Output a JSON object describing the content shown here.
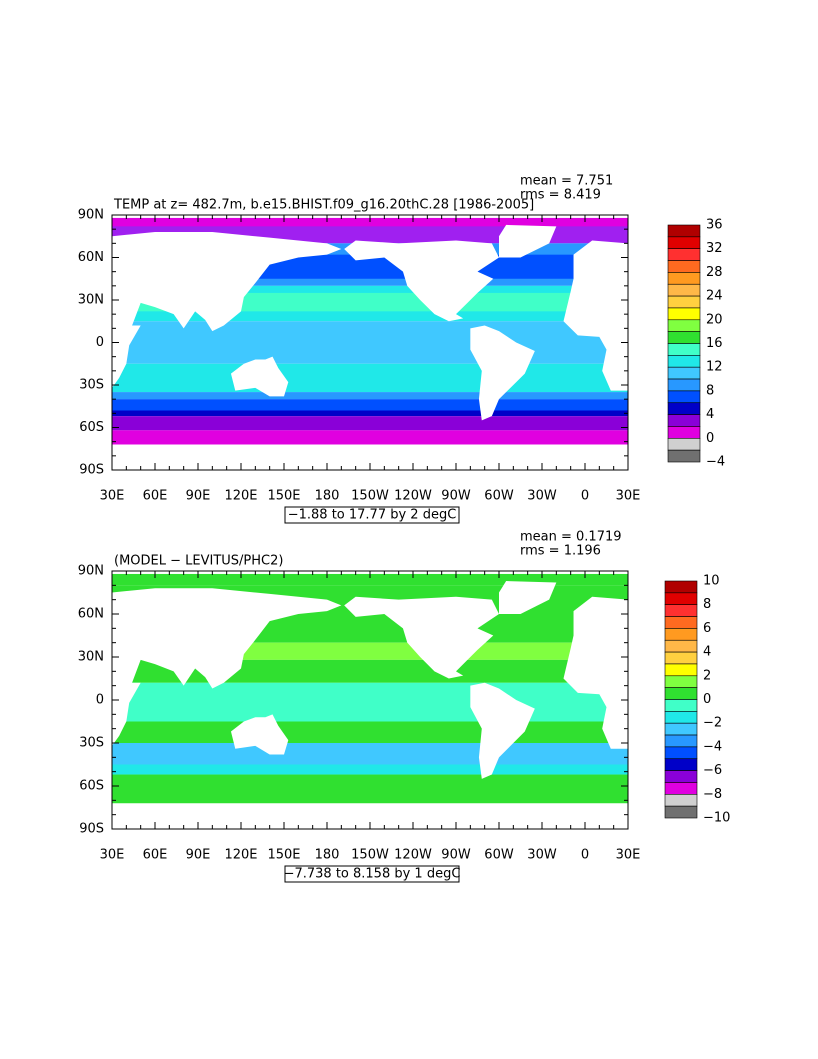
{
  "panels": [
    {
      "title": "TEMP at z= 482.7m, b.e15.BHIST.f09_g16.20thC.28 [1986-2005]",
      "mean": "mean = 7.751",
      "rms": "rms = 8.419",
      "range": "−1.88 to 17.77 by 2 degC",
      "lat_labels": [
        "90N",
        "60N",
        "30N",
        "0",
        "30S",
        "60S",
        "90S"
      ],
      "lon_labels": [
        "30E",
        "60E",
        "90E",
        "120E",
        "150E",
        "180",
        "150W",
        "120W",
        "90W",
        "60W",
        "30W",
        "0",
        "30E"
      ],
      "colorbar": {
        "labels": [
          "36",
          "32",
          "28",
          "24",
          "20",
          "16",
          "12",
          "8",
          "4",
          "0",
          "−4"
        ],
        "colors": [
          "#b00000",
          "#e00000",
          "#ff3030",
          "#ff6a20",
          "#ff9a20",
          "#ffb848",
          "#ffd040",
          "#ffff00",
          "#80ff40",
          "#30e030",
          "#40ffc8",
          "#20e8e8",
          "#40c8ff",
          "#2898ff",
          "#0050ff",
          "#0000c8",
          "#8a00d8",
          "#e000e0",
          "#d0d0d0",
          "#707070"
        ]
      }
    },
    {
      "title": "(MODEL − LEVITUS/PHC2)",
      "mean": "mean = 0.1719",
      "rms": "rms = 1.196",
      "range": "−7.738 to 8.158 by 1 degC",
      "lat_labels": [
        "90N",
        "60N",
        "30N",
        "0",
        "30S",
        "60S",
        "90S"
      ],
      "lon_labels": [
        "30E",
        "60E",
        "90E",
        "120E",
        "150E",
        "180",
        "150W",
        "120W",
        "90W",
        "60W",
        "30W",
        "0",
        "30E"
      ],
      "colorbar": {
        "labels": [
          "10",
          "8",
          "6",
          "4",
          "2",
          "0",
          "−2",
          "−4",
          "−6",
          "−8",
          "−10"
        ],
        "colors": [
          "#b00000",
          "#e00000",
          "#ff3030",
          "#ff6a20",
          "#ff9a20",
          "#ffb848",
          "#ffd040",
          "#ffff00",
          "#80ff40",
          "#30e030",
          "#40ffc8",
          "#20e8e8",
          "#40c8ff",
          "#2898ff",
          "#0050ff",
          "#0000c8",
          "#8a00d8",
          "#e000e0",
          "#d0d0d0",
          "#707070"
        ]
      }
    }
  ]
}
